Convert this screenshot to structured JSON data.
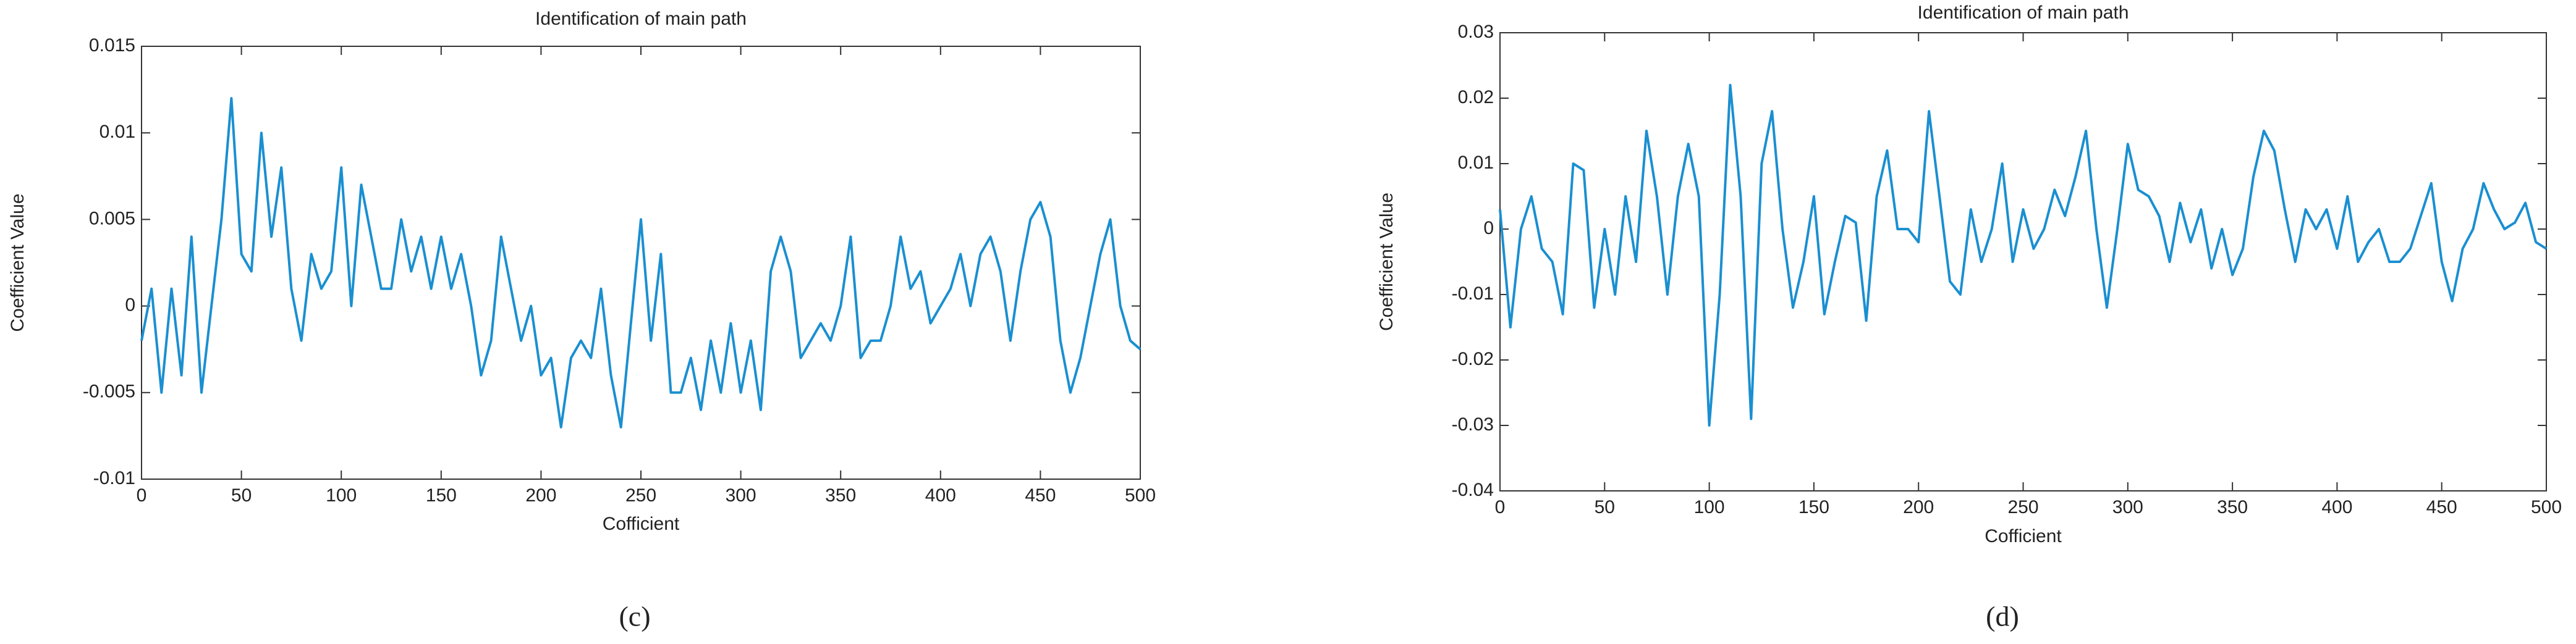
{
  "chart_data": [
    {
      "type": "line",
      "title": "Identification of main path",
      "xlabel": "Cofficient",
      "ylabel": "Coefficient Value",
      "caption": "(c)",
      "xlim": [
        0,
        500
      ],
      "xticks": [
        0,
        50,
        100,
        150,
        200,
        250,
        300,
        350,
        400,
        450,
        500
      ],
      "ylim": [
        -0.01,
        0.015
      ],
      "yticks": [
        -0.01,
        -0.005,
        0,
        0.005,
        0.01,
        0.015
      ],
      "x": [
        0,
        5,
        10,
        15,
        20,
        25,
        30,
        35,
        40,
        45,
        50,
        55,
        60,
        65,
        70,
        75,
        80,
        85,
        90,
        95,
        100,
        105,
        110,
        115,
        120,
        125,
        130,
        135,
        140,
        145,
        150,
        155,
        160,
        165,
        170,
        175,
        180,
        185,
        190,
        195,
        200,
        205,
        210,
        215,
        220,
        225,
        230,
        235,
        240,
        245,
        250,
        255,
        260,
        265,
        270,
        275,
        280,
        285,
        290,
        295,
        300,
        305,
        310,
        315,
        320,
        325,
        330,
        335,
        340,
        345,
        350,
        355,
        360,
        365,
        370,
        375,
        380,
        385,
        390,
        395,
        400,
        405,
        410,
        415,
        420,
        425,
        430,
        435,
        440,
        445,
        450,
        455,
        460,
        465,
        470,
        475,
        480,
        485,
        490,
        495,
        500
      ],
      "series": [
        {
          "color": "#1a8fd1",
          "values": [
            -0.002,
            0.001,
            -0.005,
            0.001,
            -0.004,
            0.004,
            -0.005,
            0.0,
            0.005,
            0.012,
            0.003,
            0.002,
            0.01,
            0.004,
            0.008,
            0.001,
            -0.002,
            0.003,
            0.001,
            0.002,
            0.008,
            0.0,
            0.007,
            0.004,
            0.001,
            0.001,
            0.005,
            0.002,
            0.004,
            0.001,
            0.004,
            0.001,
            0.003,
            0.0,
            -0.004,
            -0.002,
            0.004,
            0.001,
            -0.002,
            0.0,
            -0.004,
            -0.003,
            -0.007,
            -0.003,
            -0.002,
            -0.003,
            0.001,
            -0.004,
            -0.007,
            -0.001,
            0.005,
            -0.002,
            0.003,
            -0.005,
            -0.005,
            -0.003,
            -0.006,
            -0.002,
            -0.005,
            -0.001,
            -0.005,
            -0.002,
            -0.006,
            0.002,
            0.004,
            0.002,
            -0.003,
            -0.002,
            -0.001,
            -0.002,
            0.0,
            0.004,
            -0.003,
            -0.002,
            -0.002,
            0.0,
            0.004,
            0.001,
            0.002,
            -0.001,
            0.0,
            0.001,
            0.003,
            0.0,
            0.003,
            0.004,
            0.002,
            -0.002,
            0.002,
            0.005,
            0.006,
            0.004,
            -0.002,
            -0.005,
            -0.003,
            0.0,
            0.003,
            0.005,
            0.0,
            -0.002,
            -0.0025
          ]
        }
      ]
    },
    {
      "type": "line",
      "title": "Identification of main path",
      "xlabel": "Cofficient",
      "ylabel": "Coefficient Value",
      "caption": "(d)",
      "xlim": [
        0,
        500
      ],
      "xticks": [
        0,
        50,
        100,
        150,
        200,
        250,
        300,
        350,
        400,
        450,
        500
      ],
      "ylim": [
        -0.04,
        0.03
      ],
      "yticks": [
        -0.04,
        -0.03,
        -0.02,
        -0.01,
        0,
        0.01,
        0.02,
        0.03
      ],
      "x": [
        0,
        5,
        10,
        15,
        20,
        25,
        30,
        35,
        40,
        45,
        50,
        55,
        60,
        65,
        70,
        75,
        80,
        85,
        90,
        95,
        100,
        105,
        110,
        115,
        120,
        125,
        130,
        135,
        140,
        145,
        150,
        155,
        160,
        165,
        170,
        175,
        180,
        185,
        190,
        195,
        200,
        205,
        210,
        215,
        220,
        225,
        230,
        235,
        240,
        245,
        250,
        255,
        260,
        265,
        270,
        275,
        280,
        285,
        290,
        295,
        300,
        305,
        310,
        315,
        320,
        325,
        330,
        335,
        340,
        345,
        350,
        355,
        360,
        365,
        370,
        375,
        380,
        385,
        390,
        395,
        400,
        405,
        410,
        415,
        420,
        425,
        430,
        435,
        440,
        445,
        450,
        455,
        460,
        465,
        470,
        475,
        480,
        485,
        490,
        495,
        500
      ],
      "series": [
        {
          "color": "#1a8fd1",
          "values": [
            0.003,
            -0.015,
            0.0,
            0.005,
            -0.003,
            -0.005,
            -0.013,
            0.01,
            0.009,
            -0.012,
            0.0,
            -0.01,
            0.005,
            -0.005,
            0.015,
            0.005,
            -0.01,
            0.005,
            0.013,
            0.005,
            -0.03,
            -0.01,
            0.022,
            0.005,
            -0.029,
            0.01,
            0.018,
            0.0,
            -0.012,
            -0.005,
            0.005,
            -0.013,
            -0.005,
            0.002,
            0.001,
            -0.014,
            0.005,
            0.012,
            0.0,
            0.0,
            -0.002,
            0.018,
            0.005,
            -0.008,
            -0.01,
            0.003,
            -0.005,
            0.0,
            0.01,
            -0.005,
            0.003,
            -0.003,
            0.0,
            0.006,
            0.002,
            0.008,
            0.015,
            0.0,
            -0.012,
            0.0,
            0.013,
            0.006,
            0.005,
            0.002,
            -0.005,
            0.004,
            -0.002,
            0.003,
            -0.006,
            0.0,
            -0.007,
            -0.003,
            0.008,
            0.015,
            0.012,
            0.003,
            -0.005,
            0.003,
            0.0,
            0.003,
            -0.003,
            0.005,
            -0.005,
            -0.002,
            0.0,
            -0.005,
            -0.005,
            -0.003,
            0.002,
            0.007,
            -0.005,
            -0.011,
            -0.003,
            0.0,
            0.007,
            0.003,
            0.0,
            0.001,
            0.004,
            -0.002,
            -0.003
          ]
        }
      ]
    }
  ]
}
